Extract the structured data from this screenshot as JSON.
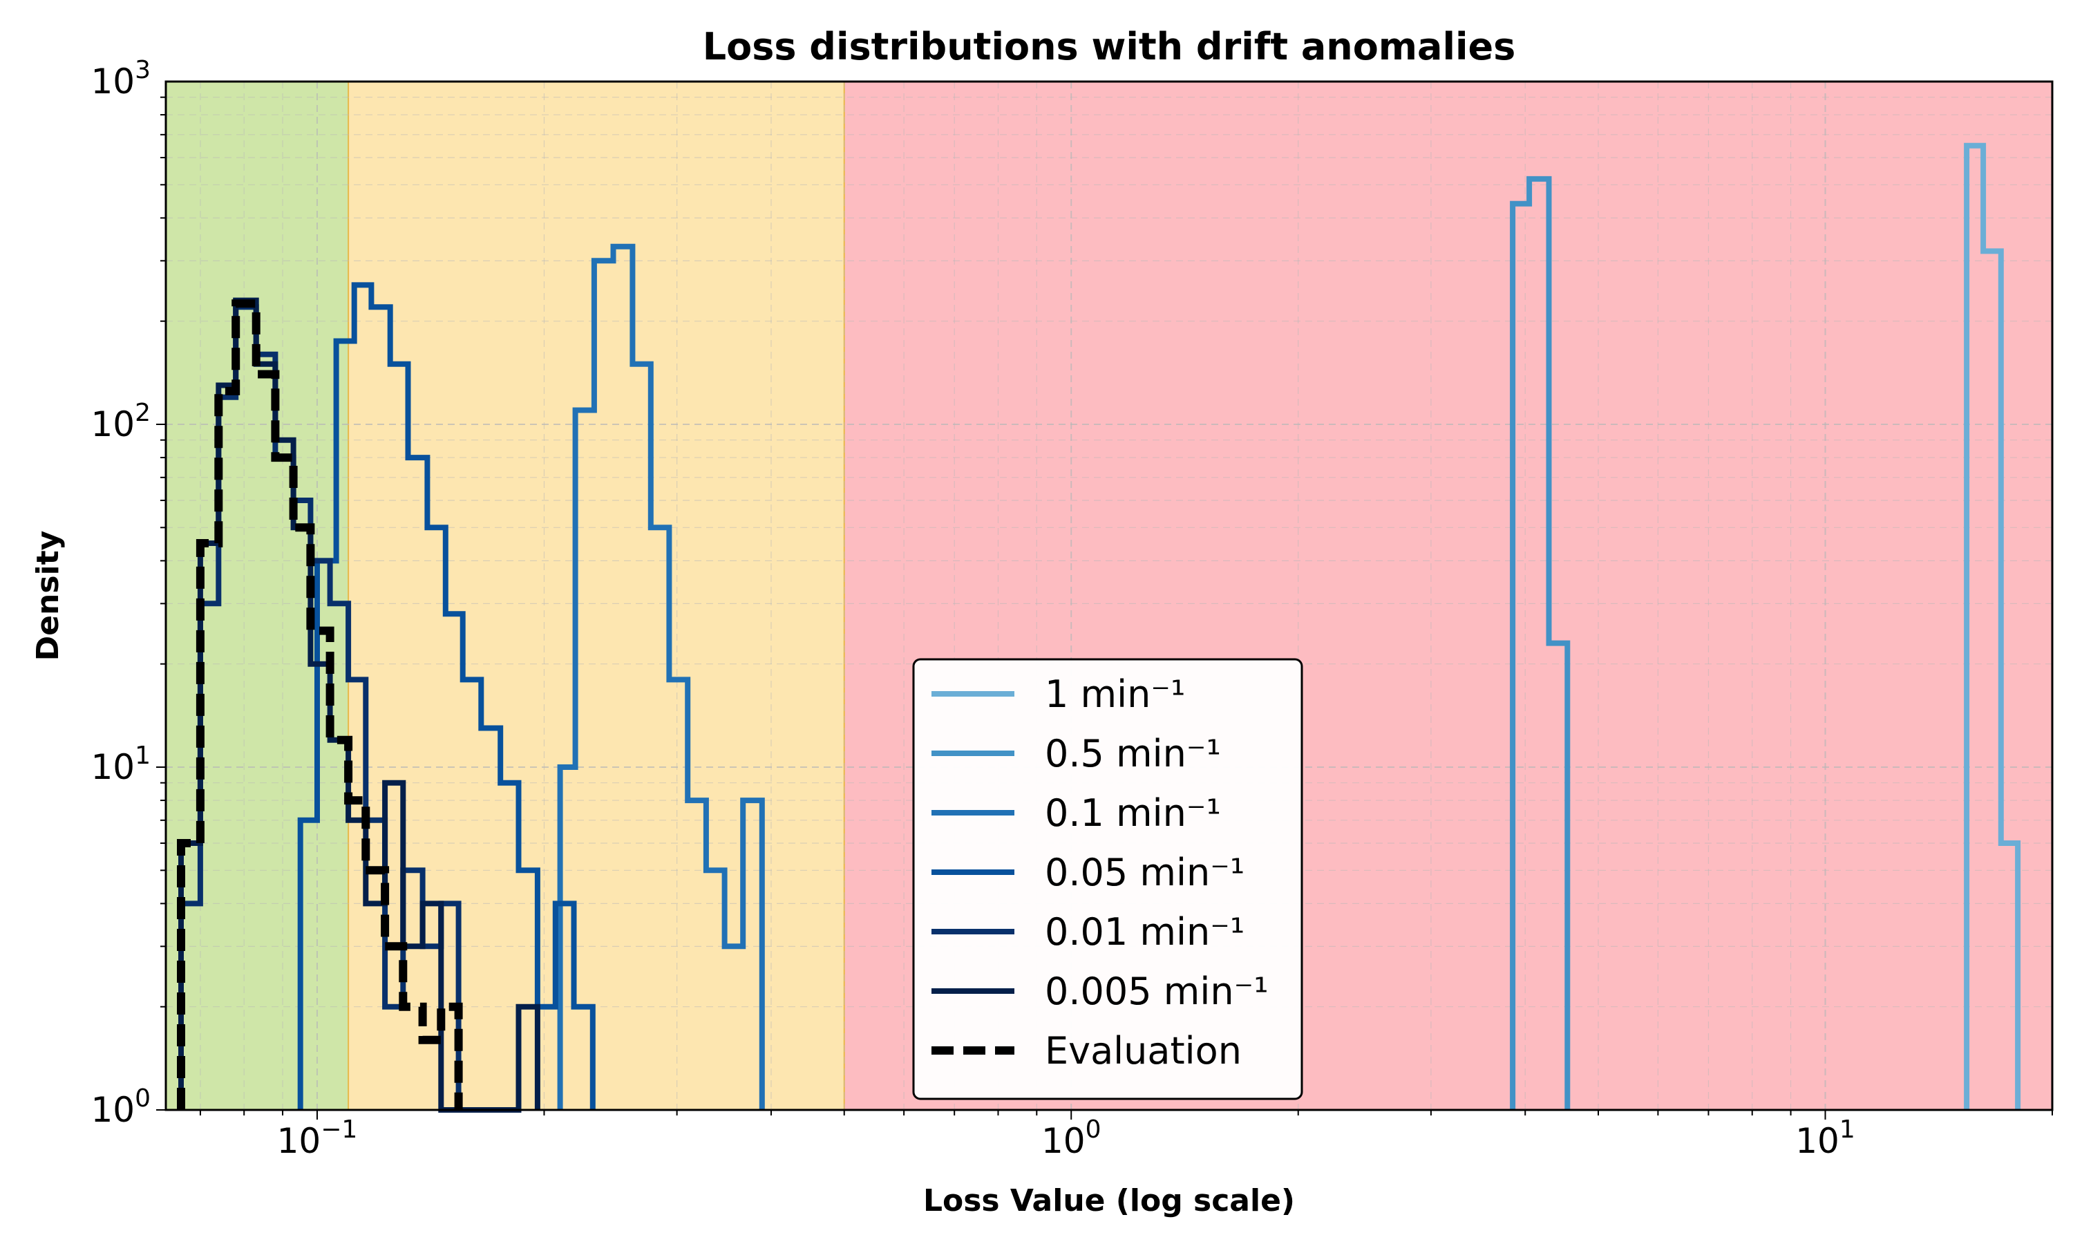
{
  "chart_data": {
    "type": "histogram-step",
    "title": "Loss distributions with drift anomalies",
    "xlabel": "Loss Value (log scale)",
    "ylabel": "Density",
    "xscale": "log",
    "yscale": "log",
    "xlim": [
      0.063,
      20
    ],
    "ylim": [
      1,
      1000
    ],
    "x_ticks": [
      {
        "value": 0.1,
        "base": "10",
        "exp": "−1"
      },
      {
        "value": 1,
        "base": "10",
        "exp": "0"
      },
      {
        "value": 10,
        "base": "10",
        "exp": "1"
      }
    ],
    "y_ticks": [
      {
        "value": 1,
        "base": "10",
        "exp": "0"
      },
      {
        "value": 10,
        "base": "10",
        "exp": "1"
      },
      {
        "value": 100,
        "base": "10",
        "exp": "2"
      },
      {
        "value": 1000,
        "base": "10",
        "exp": "3"
      }
    ],
    "grid": true,
    "legend_position": "lower-center",
    "background_regions": [
      {
        "from": 0.063,
        "to": 0.11,
        "color": "#cfe6a8"
      },
      {
        "from": 0.11,
        "to": 0.5,
        "color": "#fde6b0"
      },
      {
        "from": 0.5,
        "to": 20,
        "color": "#fdbcc1"
      }
    ],
    "series": [
      {
        "name": "1 min⁻¹",
        "color": "#6baed6",
        "dashed": false,
        "points": [
          [
            15.4,
            1
          ],
          [
            15.4,
            650
          ],
          [
            16.2,
            650
          ],
          [
            16.2,
            320
          ],
          [
            17.1,
            320
          ],
          [
            17.1,
            6
          ],
          [
            18.0,
            6
          ],
          [
            18.0,
            1
          ]
        ]
      },
      {
        "name": "0.5 min⁻¹",
        "color": "#4292c6",
        "dashed": false,
        "points": [
          [
            3.85,
            1
          ],
          [
            3.85,
            440
          ],
          [
            4.05,
            440
          ],
          [
            4.05,
            520
          ],
          [
            4.3,
            520
          ],
          [
            4.3,
            23
          ],
          [
            4.55,
            23
          ],
          [
            4.55,
            1
          ]
        ]
      },
      {
        "name": "0.1 min⁻¹",
        "color": "#2171b5",
        "dashed": false,
        "points": [
          [
            0.21,
            1
          ],
          [
            0.21,
            10
          ],
          [
            0.22,
            10
          ],
          [
            0.22,
            110
          ],
          [
            0.233,
            110
          ],
          [
            0.233,
            300
          ],
          [
            0.247,
            300
          ],
          [
            0.247,
            330
          ],
          [
            0.262,
            330
          ],
          [
            0.262,
            150
          ],
          [
            0.277,
            150
          ],
          [
            0.277,
            50
          ],
          [
            0.293,
            50
          ],
          [
            0.293,
            18
          ],
          [
            0.31,
            18
          ],
          [
            0.31,
            8
          ],
          [
            0.328,
            8
          ],
          [
            0.328,
            5
          ],
          [
            0.347,
            5
          ],
          [
            0.347,
            3
          ],
          [
            0.367,
            3
          ],
          [
            0.367,
            8
          ],
          [
            0.389,
            8
          ],
          [
            0.389,
            1
          ]
        ]
      },
      {
        "name": "0.05 min⁻¹",
        "color": "#08519c",
        "dashed": false,
        "points": [
          [
            0.095,
            1
          ],
          [
            0.095,
            7
          ],
          [
            0.1,
            7
          ],
          [
            0.1,
            40
          ],
          [
            0.106,
            40
          ],
          [
            0.106,
            175
          ],
          [
            0.112,
            175
          ],
          [
            0.112,
            255
          ],
          [
            0.118,
            255
          ],
          [
            0.118,
            220
          ],
          [
            0.125,
            220
          ],
          [
            0.125,
            150
          ],
          [
            0.132,
            150
          ],
          [
            0.132,
            80
          ],
          [
            0.14,
            80
          ],
          [
            0.14,
            50
          ],
          [
            0.148,
            50
          ],
          [
            0.148,
            28
          ],
          [
            0.156,
            28
          ],
          [
            0.156,
            18
          ],
          [
            0.165,
            18
          ],
          [
            0.165,
            13
          ],
          [
            0.175,
            13
          ],
          [
            0.175,
            9
          ],
          [
            0.185,
            9
          ],
          [
            0.185,
            5
          ],
          [
            0.196,
            5
          ],
          [
            0.196,
            2
          ],
          [
            0.207,
            2
          ],
          [
            0.207,
            4
          ],
          [
            0.219,
            4
          ],
          [
            0.219,
            2
          ],
          [
            0.232,
            2
          ],
          [
            0.232,
            1
          ]
        ]
      },
      {
        "name": "0.01 min⁻¹",
        "color": "#08306b",
        "dashed": false,
        "points": [
          [
            0.066,
            1
          ],
          [
            0.066,
            4
          ],
          [
            0.07,
            4
          ],
          [
            0.07,
            30
          ],
          [
            0.074,
            30
          ],
          [
            0.074,
            120
          ],
          [
            0.078,
            120
          ],
          [
            0.078,
            220
          ],
          [
            0.083,
            220
          ],
          [
            0.083,
            160
          ],
          [
            0.088,
            160
          ],
          [
            0.088,
            80
          ],
          [
            0.093,
            80
          ],
          [
            0.093,
            60
          ],
          [
            0.098,
            60
          ],
          [
            0.098,
            40
          ],
          [
            0.104,
            40
          ],
          [
            0.104,
            30
          ],
          [
            0.11,
            30
          ],
          [
            0.11,
            18
          ],
          [
            0.116,
            18
          ],
          [
            0.116,
            7
          ],
          [
            0.123,
            7
          ],
          [
            0.123,
            2
          ],
          [
            0.13,
            2
          ],
          [
            0.13,
            5
          ],
          [
            0.138,
            5
          ],
          [
            0.138,
            3
          ],
          [
            0.146,
            3
          ],
          [
            0.146,
            4
          ],
          [
            0.154,
            4
          ],
          [
            0.154,
            1
          ]
        ]
      },
      {
        "name": "0.005 min⁻¹",
        "color": "#041f4a",
        "dashed": false,
        "points": [
          [
            0.066,
            1
          ],
          [
            0.066,
            6
          ],
          [
            0.07,
            6
          ],
          [
            0.07,
            45
          ],
          [
            0.074,
            45
          ],
          [
            0.074,
            130
          ],
          [
            0.078,
            130
          ],
          [
            0.078,
            230
          ],
          [
            0.083,
            230
          ],
          [
            0.083,
            150
          ],
          [
            0.088,
            150
          ],
          [
            0.088,
            90
          ],
          [
            0.093,
            90
          ],
          [
            0.093,
            50
          ],
          [
            0.098,
            50
          ],
          [
            0.098,
            20
          ],
          [
            0.104,
            20
          ],
          [
            0.104,
            12
          ],
          [
            0.11,
            12
          ],
          [
            0.11,
            7
          ],
          [
            0.116,
            7
          ],
          [
            0.116,
            4
          ],
          [
            0.123,
            4
          ],
          [
            0.123,
            9
          ],
          [
            0.13,
            9
          ],
          [
            0.13,
            3
          ],
          [
            0.138,
            3
          ],
          [
            0.138,
            4
          ],
          [
            0.146,
            4
          ],
          [
            0.146,
            1
          ],
          [
            0.185,
            1
          ],
          [
            0.185,
            2
          ],
          [
            0.196,
            2
          ],
          [
            0.196,
            1
          ]
        ]
      },
      {
        "name": "Evaluation",
        "color": "#000000",
        "dashed": true,
        "points": [
          [
            0.066,
            1
          ],
          [
            0.066,
            6
          ],
          [
            0.07,
            6
          ],
          [
            0.07,
            45
          ],
          [
            0.074,
            45
          ],
          [
            0.074,
            125
          ],
          [
            0.078,
            125
          ],
          [
            0.078,
            225
          ],
          [
            0.083,
            225
          ],
          [
            0.083,
            140
          ],
          [
            0.088,
            140
          ],
          [
            0.088,
            80
          ],
          [
            0.093,
            80
          ],
          [
            0.093,
            50
          ],
          [
            0.098,
            50
          ],
          [
            0.098,
            25
          ],
          [
            0.104,
            25
          ],
          [
            0.104,
            12
          ],
          [
            0.11,
            12
          ],
          [
            0.11,
            8
          ],
          [
            0.116,
            8
          ],
          [
            0.116,
            5
          ],
          [
            0.123,
            5
          ],
          [
            0.123,
            3
          ],
          [
            0.13,
            3
          ],
          [
            0.13,
            2
          ],
          [
            0.138,
            2
          ],
          [
            0.138,
            1.6
          ],
          [
            0.146,
            1.6
          ],
          [
            0.146,
            2
          ],
          [
            0.154,
            2
          ],
          [
            0.154,
            1
          ]
        ]
      }
    ]
  }
}
